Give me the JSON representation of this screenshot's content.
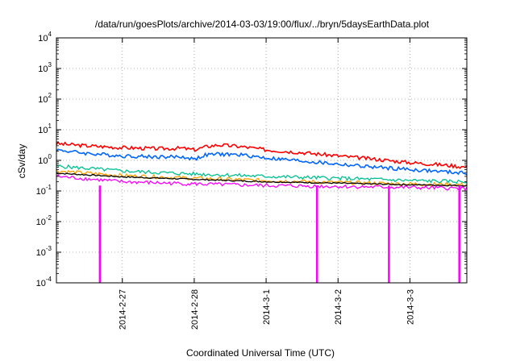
{
  "chart_data": {
    "type": "line",
    "title": "/data/run/goesPlots/archive/2014-03-03/19:00/flux/../bryn/5daysEarthData.plot",
    "xlabel": "Coordinated Universal Time (UTC)",
    "ylabel": "cSv/day",
    "yscale": "log",
    "ylim": [
      0.0001,
      10000
    ],
    "xlim": [
      "2014-02-26 02:00",
      "2014-03-03 19:00"
    ],
    "y_ticks": [
      {
        "base": "10",
        "exp": "-4",
        "value": 0.0001
      },
      {
        "base": "10",
        "exp": "-3",
        "value": 0.001
      },
      {
        "base": "10",
        "exp": "-2",
        "value": 0.01
      },
      {
        "base": "10",
        "exp": "-1",
        "value": 0.1
      },
      {
        "base": "10",
        "exp": "0",
        "value": 1
      },
      {
        "base": "10",
        "exp": "1",
        "value": 10
      },
      {
        "base": "10",
        "exp": "2",
        "value": 100
      },
      {
        "base": "10",
        "exp": "3",
        "value": 1000
      },
      {
        "base": "10",
        "exp": "4",
        "value": 10000
      }
    ],
    "x_ticks": [
      {
        "label": "2014-2-27",
        "date": "2014-02-27"
      },
      {
        "label": "2014-2-28",
        "date": "2014-02-28"
      },
      {
        "label": "2014-3-1",
        "date": "2014-03-01"
      },
      {
        "label": "2014-3-2",
        "date": "2014-03-02"
      },
      {
        "label": "2014-3-3",
        "date": "2014-03-03"
      }
    ],
    "grid": true,
    "series": [
      {
        "color": "#ff0000",
        "x": [
          "2014-02-26 02:00",
          "2014-02-26 12:00",
          "2014-02-27 00:00",
          "2014-02-27 12:00",
          "2014-02-27 20:00",
          "2014-02-28 00:00",
          "2014-02-28 04:00",
          "2014-02-28 08:00",
          "2014-02-28 16:00",
          "2014-03-01 00:00",
          "2014-03-01 12:00",
          "2014-03-02 00:00",
          "2014-03-02 12:00",
          "2014-03-03 00:00",
          "2014-03-03 12:00",
          "2014-03-03 19:00"
        ],
        "values": [
          3.5,
          3.0,
          2.6,
          2.4,
          2.5,
          2.2,
          2.8,
          3.2,
          2.8,
          2.2,
          1.8,
          1.4,
          1.1,
          0.85,
          0.7,
          0.6
        ]
      },
      {
        "color": "#0066ff",
        "x": [
          "2014-02-26 02:00",
          "2014-02-26 12:00",
          "2014-02-27 00:00",
          "2014-02-27 12:00",
          "2014-02-27 20:00",
          "2014-02-28 00:00",
          "2014-02-28 04:00",
          "2014-02-28 08:00",
          "2014-02-28 16:00",
          "2014-03-01 00:00",
          "2014-03-01 12:00",
          "2014-03-02 00:00",
          "2014-03-02 12:00",
          "2014-03-03 00:00",
          "2014-03-03 12:00",
          "2014-03-03 19:00"
        ],
        "values": [
          2.2,
          1.7,
          1.4,
          1.3,
          1.3,
          1.1,
          1.5,
          1.6,
          1.5,
          1.2,
          0.95,
          0.75,
          0.6,
          0.5,
          0.42,
          0.38
        ]
      },
      {
        "color": "#00c090",
        "x": [
          "2014-02-26 02:00",
          "2014-02-26 12:00",
          "2014-02-27 00:00",
          "2014-02-27 12:00",
          "2014-02-28 00:00",
          "2014-02-28 12:00",
          "2014-03-01 00:00",
          "2014-03-01 12:00",
          "2014-03-02 00:00",
          "2014-03-02 12:00",
          "2014-03-03 00:00",
          "2014-03-03 19:00"
        ],
        "values": [
          0.65,
          0.55,
          0.45,
          0.4,
          0.36,
          0.33,
          0.3,
          0.28,
          0.26,
          0.24,
          0.22,
          0.2
        ]
      },
      {
        "color": "#ffa000",
        "x": [
          "2014-02-26 02:00",
          "2014-02-27 00:00",
          "2014-02-28 00:00",
          "2014-03-01 00:00",
          "2014-03-02 00:00",
          "2014-03-03 00:00",
          "2014-03-03 19:00"
        ],
        "values": [
          0.45,
          0.32,
          0.26,
          0.22,
          0.19,
          0.17,
          0.16
        ]
      },
      {
        "color": "#000000",
        "x": [
          "2014-02-26 02:00",
          "2014-02-27 00:00",
          "2014-02-28 00:00",
          "2014-03-01 00:00",
          "2014-03-02 00:00",
          "2014-03-03 00:00",
          "2014-03-03 19:00"
        ],
        "values": [
          0.38,
          0.29,
          0.24,
          0.2,
          0.18,
          0.16,
          0.15
        ]
      },
      {
        "color": "#ff00ff",
        "x": [
          "2014-02-26 02:00",
          "2014-02-26 12:00",
          "2014-02-27 00:00",
          "2014-02-28 00:00",
          "2014-03-01 00:00",
          "2014-03-02 00:00",
          "2014-03-03 00:00",
          "2014-03-03 19:00"
        ],
        "values": [
          0.3,
          0.25,
          0.2,
          0.17,
          0.15,
          0.14,
          0.13,
          0.12
        ],
        "dropouts": [
          "2014-02-26 16:30",
          "2014-03-01 17:00",
          "2014-03-02 17:00",
          "2014-03-03 16:30"
        ]
      }
    ]
  }
}
